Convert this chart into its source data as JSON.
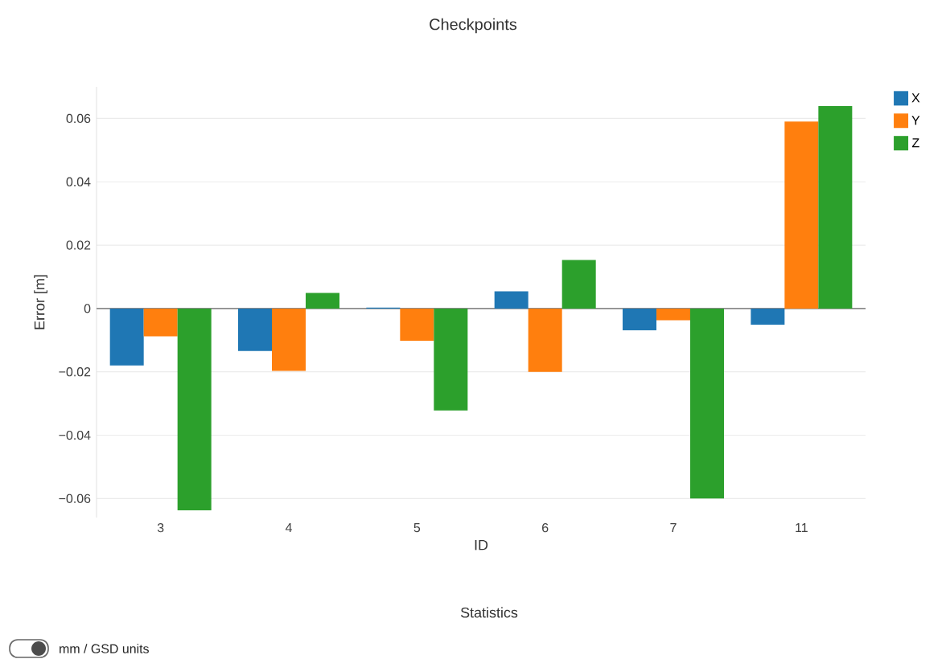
{
  "chart_data": {
    "type": "bar",
    "title": "Checkpoints",
    "xlabel": "ID",
    "ylabel": "Error [m]",
    "categories": [
      "3",
      "4",
      "5",
      "6",
      "7",
      "11"
    ],
    "series": [
      {
        "name": "X",
        "color": "#1f77b4",
        "values": [
          -0.018,
          -0.0134,
          0.0003,
          0.0054,
          -0.0069,
          -0.0051
        ]
      },
      {
        "name": "Y",
        "color": "#ff7f0e",
        "values": [
          -0.0088,
          -0.0197,
          -0.0102,
          -0.02,
          -0.0037,
          0.059
        ]
      },
      {
        "name": "Z",
        "color": "#2ca02c",
        "values": [
          -0.0637,
          0.0049,
          -0.0322,
          0.0153,
          -0.06,
          0.0639
        ]
      }
    ],
    "ylim": [
      -0.066,
      0.07
    ],
    "yticks": [
      {
        "value": -0.06,
        "label": "−0.06"
      },
      {
        "value": -0.04,
        "label": "−0.04"
      },
      {
        "value": -0.02,
        "label": "−0.02"
      },
      0,
      0.02,
      0.04,
      0.06
    ],
    "grid": "y",
    "legend": "top right",
    "annotations": [
      "Statistics",
      "mm / GSD units"
    ]
  }
}
